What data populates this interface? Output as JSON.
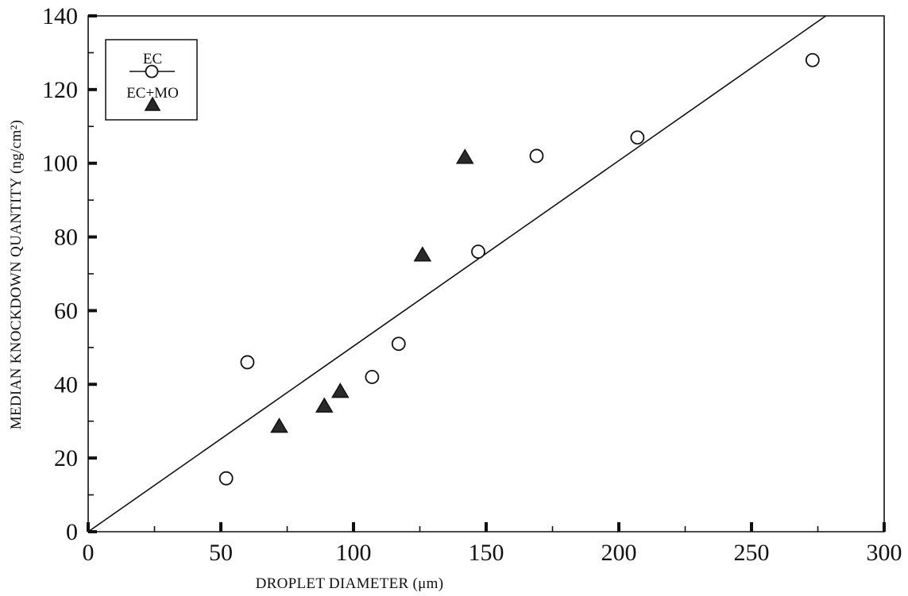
{
  "chart_data": {
    "type": "scatter",
    "title": "",
    "xlabel": "DROPLET DIAMETER (μm)",
    "ylabel": "MEDIAN KNOCKDOWN QUANTITY (ng/cm²)",
    "xlim": [
      0,
      300
    ],
    "ylim": [
      0,
      140
    ],
    "x_ticks": [
      0,
      50,
      100,
      150,
      200,
      250,
      300
    ],
    "y_ticks": [
      0,
      20,
      40,
      60,
      80,
      100,
      120,
      140
    ],
    "grid": false,
    "legend_position": "top-left",
    "series": [
      {
        "name": "EC",
        "marker": "open-circle",
        "x": [
          52,
          60,
          107,
          117,
          147,
          169,
          207,
          273
        ],
        "y": [
          14.5,
          46,
          42,
          51,
          76,
          102,
          107,
          128
        ]
      },
      {
        "name": "EC+MO",
        "marker": "filled-triangle",
        "x": [
          72,
          89,
          95,
          126,
          142
        ],
        "y": [
          28.5,
          34,
          38,
          75,
          101.5
        ]
      }
    ],
    "fit_line": {
      "x": [
        0,
        280
      ],
      "y": [
        0,
        141
      ]
    },
    "colors": {
      "ink": "#111111",
      "background": "#ffffff"
    }
  }
}
